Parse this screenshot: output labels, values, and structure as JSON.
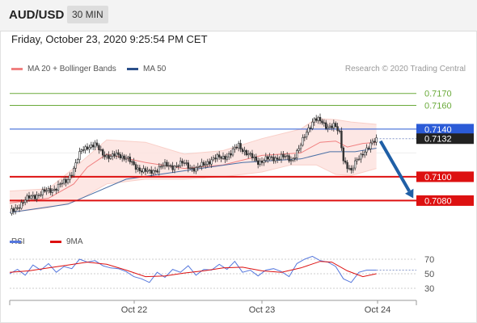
{
  "header": {
    "symbol": "AUD/USD",
    "timeframe": "30 MIN"
  },
  "timestamp": "Friday, October 23, 2020 9:25:54 PM CET",
  "legend": {
    "bb_label": "MA 20 + Bollinger Bands",
    "ma50_label": "MA 50",
    "rsi_label": "RSI",
    "rsi_ma_label": "9MA"
  },
  "credit": "Research © 2020 Trading Central",
  "colors": {
    "bollinger": "#f08080",
    "band_fill": "#fde3df",
    "ma50": "#4a6fa5",
    "resistance": "#6aaa3a",
    "pivot": "#2b5bd7",
    "support": "#dd1111",
    "price": "#333333",
    "rsi": "#5577dd",
    "rsi_ma": "#dd1111",
    "arrow": "#1f5fa6"
  },
  "chart_data": [
    {
      "type": "candlestick",
      "title": "AUD/USD",
      "ylim": [
        7064,
        7182
      ],
      "levels": [
        {
          "value": "0.7170",
          "kind": "resistance"
        },
        {
          "value": "0.7160",
          "kind": "resistance"
        },
        {
          "value": "0.7140",
          "kind": "pivot"
        },
        {
          "value": "0.7132",
          "kind": "current"
        },
        {
          "value": "0.7100",
          "kind": "support"
        },
        {
          "value": "0.7080",
          "kind": "support"
        }
      ],
      "x_ticks": [
        "Oct 22",
        "Oct 23",
        "Oct 24"
      ],
      "price_path": [
        [
          0,
          7069
        ],
        [
          6,
          7078
        ],
        [
          12,
          7084
        ],
        [
          18,
          7087
        ],
        [
          24,
          7091
        ],
        [
          29,
          7096
        ],
        [
          33,
          7107
        ],
        [
          37,
          7122
        ],
        [
          40,
          7126
        ],
        [
          44,
          7126
        ],
        [
          48,
          7120
        ],
        [
          52,
          7116
        ],
        [
          56,
          7119
        ],
        [
          60,
          7116
        ],
        [
          64,
          7109
        ],
        [
          68,
          7106
        ],
        [
          72,
          7103
        ],
        [
          78,
          7109
        ],
        [
          84,
          7109
        ],
        [
          90,
          7111
        ],
        [
          96,
          7106
        ],
        [
          102,
          7113
        ],
        [
          108,
          7116
        ],
        [
          114,
          7119
        ],
        [
          118,
          7127
        ],
        [
          123,
          7118
        ],
        [
          128,
          7113
        ],
        [
          134,
          7115
        ],
        [
          140,
          7117
        ],
        [
          145,
          7114
        ],
        [
          150,
          7126
        ],
        [
          154,
          7141
        ],
        [
          157,
          7149
        ],
        [
          160,
          7146
        ],
        [
          163,
          7143
        ],
        [
          167,
          7143
        ],
        [
          170,
          7136
        ],
        [
          172,
          7115
        ],
        [
          176,
          7104
        ],
        [
          179,
          7114
        ],
        [
          182,
          7121
        ],
        [
          185,
          7124
        ],
        [
          189,
          7132
        ]
      ],
      "ma20": [
        [
          0,
          7078
        ],
        [
          20,
          7082
        ],
        [
          33,
          7094
        ],
        [
          40,
          7108
        ],
        [
          50,
          7119
        ],
        [
          70,
          7112
        ],
        [
          90,
          7107
        ],
        [
          110,
          7110
        ],
        [
          130,
          7118
        ],
        [
          150,
          7120
        ],
        [
          160,
          7129
        ],
        [
          168,
          7130
        ],
        [
          174,
          7125
        ],
        [
          182,
          7128
        ],
        [
          189,
          7129
        ]
      ],
      "bb_upper": [
        [
          0,
          7088
        ],
        [
          20,
          7090
        ],
        [
          35,
          7110
        ],
        [
          50,
          7131
        ],
        [
          70,
          7129
        ],
        [
          90,
          7119
        ],
        [
          110,
          7122
        ],
        [
          130,
          7132
        ],
        [
          150,
          7140
        ],
        [
          158,
          7149
        ],
        [
          168,
          7148
        ],
        [
          176,
          7146
        ],
        [
          189,
          7144
        ]
      ],
      "bb_lower": [
        [
          0,
          7070
        ],
        [
          20,
          7074
        ],
        [
          35,
          7080
        ],
        [
          50,
          7094
        ],
        [
          70,
          7098
        ],
        [
          90,
          7098
        ],
        [
          110,
          7100
        ],
        [
          130,
          7104
        ],
        [
          145,
          7110
        ],
        [
          158,
          7110
        ],
        [
          168,
          7102
        ],
        [
          176,
          7101
        ],
        [
          189,
          7107
        ]
      ],
      "ma50": [
        [
          0,
          7070
        ],
        [
          30,
          7077
        ],
        [
          60,
          7098
        ],
        [
          90,
          7105
        ],
        [
          120,
          7112
        ],
        [
          150,
          7115
        ],
        [
          165,
          7121
        ],
        [
          178,
          7121
        ],
        [
          189,
          7124
        ]
      ],
      "forecast": {
        "from": [
          189,
          7132
        ],
        "to": [
          208,
          7082
        ]
      }
    },
    {
      "type": "line",
      "title": "RSI",
      "ylim": [
        20,
        80
      ],
      "y_ticks": [
        "70",
        "50",
        "30"
      ],
      "series": [
        {
          "name": "RSI",
          "points": [
            [
              0,
              50
            ],
            [
              4,
              56
            ],
            [
              8,
              48
            ],
            [
              12,
              62
            ],
            [
              16,
              55
            ],
            [
              20,
              64
            ],
            [
              24,
              52
            ],
            [
              28,
              60
            ],
            [
              32,
              57
            ],
            [
              36,
              70
            ],
            [
              40,
              66
            ],
            [
              44,
              68
            ],
            [
              48,
              61
            ],
            [
              52,
              58
            ],
            [
              56,
              57
            ],
            [
              60,
              53
            ],
            [
              64,
              46
            ],
            [
              68,
              43
            ],
            [
              72,
              38
            ],
            [
              76,
              52
            ],
            [
              80,
              45
            ],
            [
              84,
              56
            ],
            [
              88,
              52
            ],
            [
              92,
              61
            ],
            [
              96,
              48
            ],
            [
              100,
              56
            ],
            [
              104,
              55
            ],
            [
              108,
              63
            ],
            [
              112,
              56
            ],
            [
              116,
              67
            ],
            [
              120,
              52
            ],
            [
              124,
              55
            ],
            [
              128,
              47
            ],
            [
              132,
              55
            ],
            [
              136,
              57
            ],
            [
              140,
              53
            ],
            [
              144,
              46
            ],
            [
              148,
              64
            ],
            [
              152,
              70
            ],
            [
              156,
              74
            ],
            [
              160,
              68
            ],
            [
              164,
              66
            ],
            [
              168,
              60
            ],
            [
              172,
              43
            ],
            [
              176,
              38
            ],
            [
              180,
              52
            ],
            [
              184,
              55
            ],
            [
              189,
              55
            ]
          ]
        },
        {
          "name": "9MA",
          "points": [
            [
              0,
              52
            ],
            [
              10,
              54
            ],
            [
              20,
              58
            ],
            [
              30,
              62
            ],
            [
              40,
              66
            ],
            [
              50,
              63
            ],
            [
              60,
              55
            ],
            [
              70,
              46
            ],
            [
              80,
              47
            ],
            [
              90,
              51
            ],
            [
              100,
              54
            ],
            [
              110,
              58
            ],
            [
              120,
              59
            ],
            [
              130,
              54
            ],
            [
              140,
              52
            ],
            [
              150,
              58
            ],
            [
              160,
              67
            ],
            [
              166,
              66
            ],
            [
              174,
              54
            ],
            [
              182,
              46
            ],
            [
              189,
              50
            ]
          ]
        }
      ]
    }
  ]
}
